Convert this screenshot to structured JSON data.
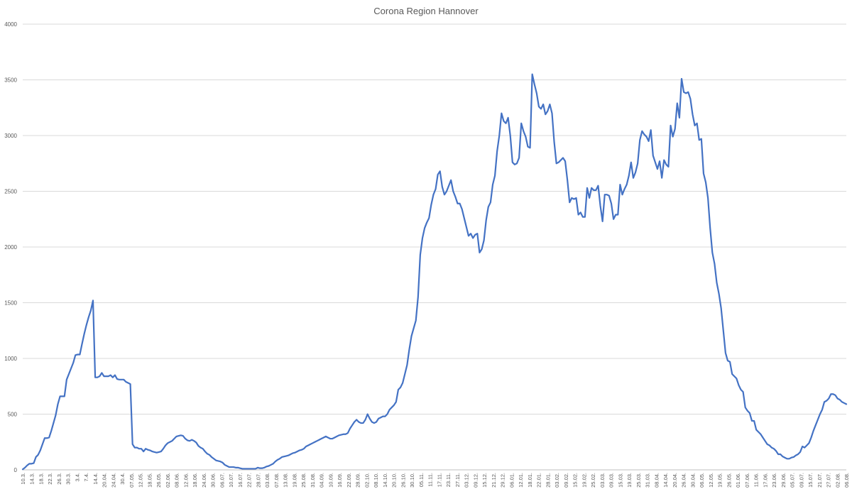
{
  "chart_data": {
    "type": "line",
    "title": "Corona Region Hannover",
    "xlabel": "",
    "ylabel": "",
    "ylim": [
      0,
      4000
    ],
    "yticks": [
      0,
      500,
      1000,
      1500,
      2000,
      2500,
      3000,
      3500,
      4000
    ],
    "grid": "horizontal",
    "legend": "none",
    "series_color": "#4472c4",
    "x_tick_labels": [
      "10.3.",
      "14.3.",
      "18.3.",
      "22.3.",
      "26.3.",
      "30.3.",
      "3.4.",
      "7.4.",
      "14.4.",
      "20.04.",
      "24.04.",
      "30.4.",
      "07.05.",
      "12.05.",
      "18.05.",
      "26.05.",
      "02.06.",
      "08.06.",
      "12.06.",
      "18.06.",
      "24.06.",
      "30.06.",
      "06.07.",
      "10.07.",
      "16.07.",
      "22.07.",
      "28.07.",
      "03.08.",
      "07.08.",
      "13.08.",
      "19.08.",
      "25.08.",
      "31.08.",
      "04.09.",
      "10.09.",
      "16.09.",
      "22.09.",
      "28.09.",
      "02.10.",
      "08.10.",
      "14.10.",
      "20.10.",
      "26.10.",
      "30.10.",
      "05.11.",
      "11.11.",
      "17.11.",
      "23.11.",
      "27.11.",
      "03.12.",
      "09.12.",
      "15.12.",
      "21.12.",
      "29.12.",
      "06.01.",
      "12.01.",
      "18.01.",
      "22.01.",
      "28.01.",
      "03.02.",
      "09.02.",
      "15.02.",
      "19.02.",
      "25.02.",
      "03.03.",
      "09.03.",
      "15.03.",
      "19.03.",
      "25.03.",
      "31.03.",
      "08.04.",
      "14.04.",
      "20.04.",
      "26.04.",
      "30.04.",
      "06.05.",
      "12.05.",
      "19.05.",
      "26.05.",
      "01.06.",
      "07.06.",
      "11.06.",
      "17.06.",
      "23.06.",
      "29.06.",
      "05.07.",
      "09.07.",
      "15.07.",
      "21.07.",
      "27.07.",
      "02.08.",
      "06.08."
    ],
    "values": [
      5,
      20,
      40,
      55,
      55,
      60,
      115,
      135,
      175,
      230,
      285,
      285,
      290,
      350,
      420,
      490,
      590,
      660,
      660,
      660,
      810,
      860,
      910,
      960,
      1030,
      1035,
      1035,
      1130,
      1220,
      1300,
      1370,
      1430,
      1520,
      830,
      830,
      840,
      870,
      840,
      840,
      840,
      850,
      830,
      850,
      815,
      810,
      810,
      810,
      790,
      780,
      770,
      230,
      200,
      200,
      190,
      190,
      165,
      190,
      180,
      175,
      165,
      160,
      155,
      160,
      165,
      190,
      220,
      240,
      250,
      260,
      280,
      300,
      305,
      310,
      305,
      280,
      265,
      260,
      270,
      260,
      245,
      215,
      200,
      190,
      165,
      145,
      135,
      115,
      100,
      85,
      80,
      75,
      65,
      45,
      35,
      25,
      25,
      25,
      20,
      20,
      15,
      10,
      10,
      10,
      10,
      10,
      10,
      10,
      20,
      15,
      15,
      20,
      30,
      35,
      45,
      55,
      75,
      90,
      100,
      115,
      120,
      125,
      130,
      140,
      150,
      155,
      165,
      175,
      180,
      190,
      210,
      220,
      230,
      240,
      250,
      260,
      270,
      280,
      290,
      300,
      290,
      280,
      280,
      290,
      300,
      310,
      315,
      320,
      320,
      330,
      370,
      400,
      430,
      450,
      430,
      420,
      420,
      450,
      500,
      460,
      430,
      420,
      430,
      460,
      470,
      480,
      480,
      500,
      540,
      560,
      580,
      610,
      720,
      740,
      780,
      860,
      940,
      1080,
      1200,
      1270,
      1340,
      1550,
      1930,
      2080,
      2170,
      2220,
      2260,
      2380,
      2470,
      2520,
      2650,
      2680,
      2540,
      2470,
      2500,
      2550,
      2600,
      2500,
      2450,
      2390,
      2390,
      2340,
      2260,
      2180,
      2100,
      2120,
      2080,
      2110,
      2120,
      1950,
      1980,
      2060,
      2240,
      2360,
      2400,
      2560,
      2640,
      2860,
      3000,
      3200,
      3130,
      3110,
      3160,
      3000,
      2760,
      2740,
      2750,
      2800,
      3110,
      3040,
      2990,
      2900,
      2890,
      3550,
      3460,
      3380,
      3260,
      3240,
      3280,
      3190,
      3220,
      3280,
      3200,
      2940,
      2750,
      2760,
      2780,
      2800,
      2770,
      2600,
      2400,
      2440,
      2430,
      2440,
      2290,
      2310,
      2270,
      2270,
      2530,
      2440,
      2530,
      2510,
      2510,
      2550,
      2370,
      2230,
      2470,
      2470,
      2460,
      2390,
      2250,
      2290,
      2290,
      2560,
      2470,
      2520,
      2560,
      2640,
      2760,
      2620,
      2670,
      2750,
      2960,
      3040,
      3010,
      2990,
      2950,
      3050,
      2820,
      2760,
      2700,
      2770,
      2620,
      2780,
      2740,
      2720,
      3090,
      2990,
      3060,
      3290,
      3160,
      3510,
      3390,
      3380,
      3390,
      3330,
      3190,
      3090,
      3110,
      2960,
      2970,
      2660,
      2580,
      2440,
      2170,
      1950,
      1850,
      1680,
      1580,
      1450,
      1250,
      1050,
      980,
      970,
      860,
      840,
      820,
      760,
      720,
      700,
      560,
      530,
      510,
      440,
      440,
      360,
      340,
      320,
      290,
      260,
      230,
      220,
      200,
      190,
      170,
      140,
      140,
      120,
      110,
      100,
      100,
      110,
      115,
      130,
      140,
      160,
      210,
      200,
      220,
      240,
      290,
      350,
      400,
      450,
      500,
      540,
      610,
      620,
      640,
      680,
      680,
      670,
      640,
      630,
      610,
      600,
      590
    ]
  }
}
